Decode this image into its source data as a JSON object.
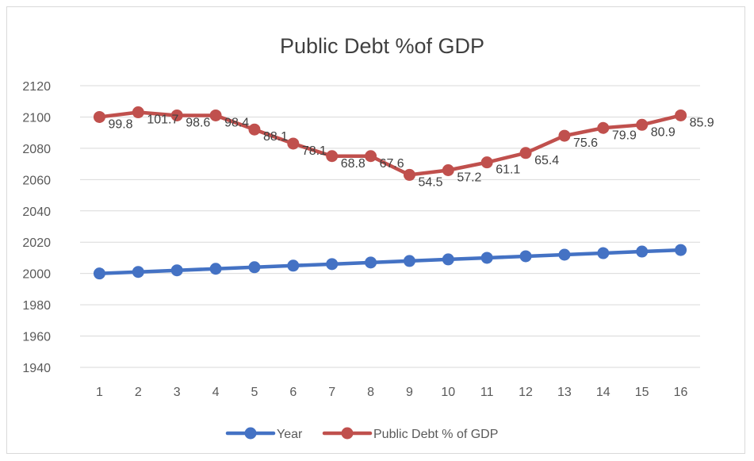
{
  "chart_data": {
    "type": "line",
    "title": "Public Debt %of GDP",
    "xlabel": "",
    "ylabel": "",
    "categories": [
      "1",
      "2",
      "3",
      "4",
      "5",
      "6",
      "7",
      "8",
      "9",
      "10",
      "11",
      "12",
      "13",
      "14",
      "15",
      "16"
    ],
    "ylim": [
      1940,
      2120
    ],
    "yticks": [
      1940,
      1960,
      1980,
      2000,
      2020,
      2040,
      2060,
      2080,
      2100,
      2120
    ],
    "grid": true,
    "legend_position": "bottom",
    "series": [
      {
        "name": "Year",
        "color": "#4472c4",
        "values": [
          2000,
          2001,
          2002,
          2003,
          2004,
          2005,
          2006,
          2007,
          2008,
          2009,
          2010,
          2011,
          2012,
          2013,
          2014,
          2015
        ],
        "data_labels": []
      },
      {
        "name": "Public Debt % of GDP",
        "color": "#c0504d",
        "values": [
          2100,
          2103,
          2101,
          2101,
          2092,
          2083,
          2075,
          2075,
          2063,
          2066,
          2071,
          2077,
          2088,
          2093,
          2095,
          2101
        ],
        "data_labels": [
          "99.8",
          "101.7",
          "98.6",
          "98.4",
          "88.1",
          "78.1",
          "68.8",
          "67.6",
          "54.5",
          "57.2",
          "61.1",
          "65.4",
          "75.6",
          "79.9",
          "80.9",
          "85.9"
        ]
      }
    ]
  }
}
